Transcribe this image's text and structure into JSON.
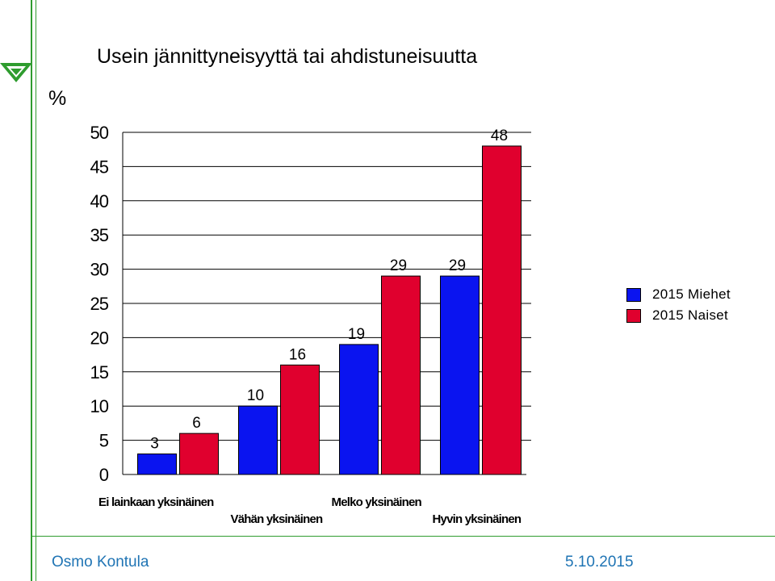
{
  "slide": {
    "title": "Usein jännittyneisyyttä tai ahdistuneisuutta",
    "y_unit": "%",
    "footer_author": "Osmo Kontula",
    "footer_date": "5.10.2015"
  },
  "colors": {
    "men": "#0a14f0",
    "women": "#e0002e",
    "brand_green": "#2e9c2e",
    "footer_text": "#1f74b4"
  },
  "chart_data": {
    "type": "bar",
    "title": "Usein jännittyneisyyttä tai ahdistuneisuutta",
    "ylabel": "%",
    "xlabel": "",
    "ylim": [
      0,
      50
    ],
    "yticks": [
      0,
      5,
      10,
      15,
      20,
      25,
      30,
      35,
      40,
      45,
      50
    ],
    "grid": true,
    "categories": [
      "Ei lainkaan yksinäinen",
      "Vähän yksinäinen",
      "Melko yksinäinen",
      "Hyvin yksinäinen"
    ],
    "series": [
      {
        "name": "2015 Miehet",
        "color": "#0a14f0",
        "values": [
          3,
          10,
          19,
          29
        ]
      },
      {
        "name": "2015 Naiset",
        "color": "#e0002e",
        "values": [
          6,
          16,
          29,
          48
        ]
      }
    ],
    "legend_position": "right"
  }
}
